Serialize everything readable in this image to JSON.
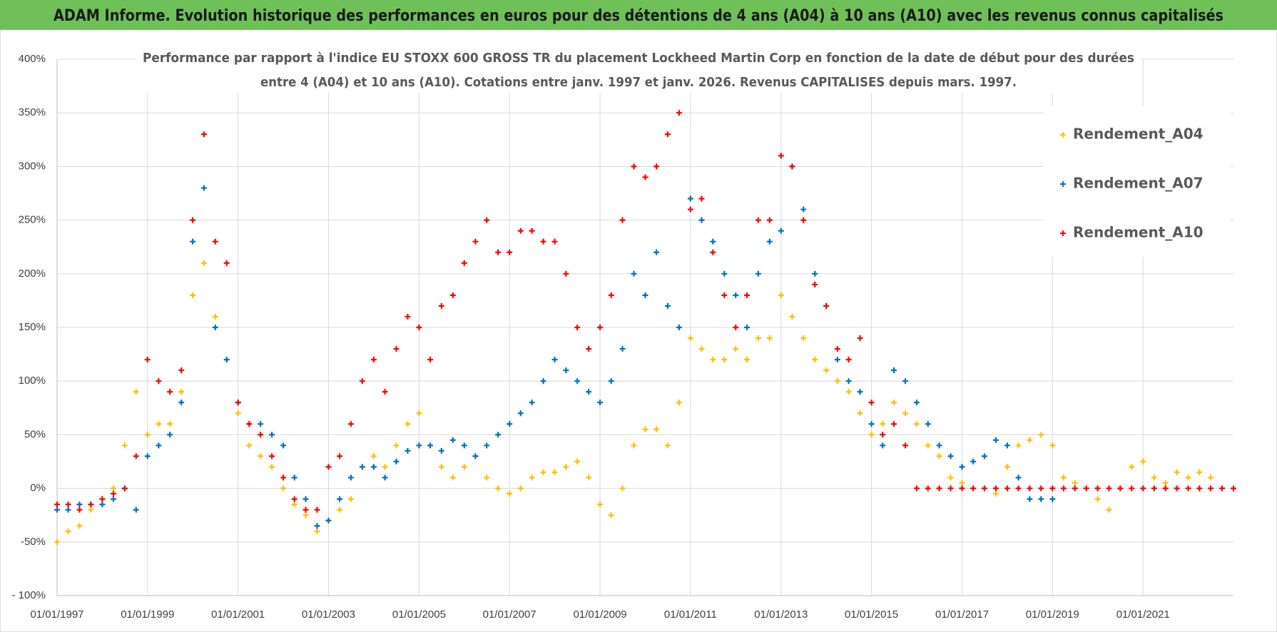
{
  "chart_data": {
    "type": "scatter",
    "title": "ADAM Informe. Evolution historique des performances en euros pour des détentions de 4 ans (A04) à 10 ans (A10) avec les revenus connus capitalisés",
    "subtitle": [
      "Performance par rapport à l'indice EU STOXX 600 GROSS TR  du placement Lockheed Martin Corp en fonction de la date de début pour des durées",
      "entre 4 (A04) et 10 ans (A10). Cotations entre janv. 1997 et janv. 2026. Revenus CAPITALISES depuis mars. 1997."
    ],
    "x": [
      "01/01/1997",
      "01/04/1997",
      "01/07/1997",
      "01/10/1997",
      "01/01/1998",
      "01/04/1998",
      "01/07/1998",
      "01/10/1998",
      "01/01/1999",
      "01/04/1999",
      "01/07/1999",
      "01/10/1999",
      "01/01/2000",
      "01/04/2000",
      "01/07/2000",
      "01/10/2000",
      "01/01/2001",
      "01/04/2001",
      "01/07/2001",
      "01/10/2001",
      "01/01/2002",
      "01/04/2002",
      "01/07/2002",
      "01/10/2002",
      "01/01/2003",
      "01/04/2003",
      "01/07/2003",
      "01/10/2003",
      "01/01/2004",
      "01/04/2004",
      "01/07/2004",
      "01/10/2004",
      "01/01/2005",
      "01/04/2005",
      "01/07/2005",
      "01/10/2005",
      "01/01/2006",
      "01/04/2006",
      "01/07/2006",
      "01/10/2006",
      "01/01/2007",
      "01/04/2007",
      "01/07/2007",
      "01/10/2007",
      "01/01/2008",
      "01/04/2008",
      "01/07/2008",
      "01/10/2008",
      "01/01/2009",
      "01/04/2009",
      "01/07/2009",
      "01/10/2009",
      "01/01/2010",
      "01/04/2010",
      "01/07/2010",
      "01/10/2010",
      "01/01/2011",
      "01/04/2011",
      "01/07/2011",
      "01/10/2011",
      "01/01/2012",
      "01/04/2012",
      "01/07/2012",
      "01/10/2012",
      "01/01/2013",
      "01/04/2013",
      "01/07/2013",
      "01/10/2013",
      "01/01/2014",
      "01/04/2014",
      "01/07/2014",
      "01/10/2014",
      "01/01/2015",
      "01/04/2015",
      "01/07/2015",
      "01/10/2015",
      "01/01/2016",
      "01/04/2016",
      "01/07/2016",
      "01/10/2016",
      "01/01/2017",
      "01/04/2017",
      "01/07/2017",
      "01/10/2017",
      "01/01/2018",
      "01/04/2018",
      "01/07/2018",
      "01/10/2018",
      "01/01/2019",
      "01/04/2019",
      "01/07/2019",
      "01/10/2019",
      "01/01/2020",
      "01/04/2020",
      "01/07/2020",
      "01/10/2020",
      "01/01/2021",
      "01/04/2021",
      "01/07/2021",
      "01/10/2021",
      "01/01/2022",
      "01/04/2022",
      "01/07/2022",
      "01/10/2022",
      "01/01/2023"
    ],
    "series": [
      {
        "name": "Rendement_A04",
        "color": "#ffc000",
        "values": [
          -50,
          -40,
          -35,
          -20,
          -10,
          0,
          40,
          90,
          50,
          60,
          60,
          90,
          180,
          210,
          160,
          120,
          70,
          40,
          30,
          20,
          0,
          -15,
          -25,
          -40,
          -30,
          -20,
          -10,
          20,
          30,
          20,
          40,
          60,
          70,
          40,
          20,
          10,
          20,
          30,
          10,
          0,
          -5,
          0,
          10,
          15,
          15,
          20,
          25,
          10,
          -15,
          -25,
          0,
          40,
          55,
          55,
          40,
          80,
          140,
          130,
          120,
          120,
          130,
          120,
          140,
          140,
          180,
          160,
          140,
          120,
          110,
          100,
          90,
          70,
          50,
          60,
          80,
          70,
          60,
          40,
          30,
          10,
          5,
          0,
          0,
          -5,
          20,
          40,
          45,
          50,
          40,
          10,
          5,
          0,
          -10,
          -20,
          0,
          20,
          25,
          10,
          5,
          15,
          10,
          15,
          10,
          null,
          null
        ]
      },
      {
        "name": "Rendement_A07",
        "color": "#0070c0",
        "values": [
          -20,
          -20,
          -15,
          -15,
          -15,
          -10,
          0,
          -20,
          30,
          40,
          50,
          80,
          230,
          280,
          150,
          120,
          80,
          60,
          60,
          50,
          40,
          10,
          -10,
          -35,
          -30,
          -10,
          10,
          20,
          20,
          10,
          25,
          35,
          40,
          40,
          35,
          45,
          40,
          30,
          40,
          50,
          60,
          70,
          80,
          100,
          120,
          110,
          100,
          90,
          80,
          100,
          130,
          200,
          180,
          220,
          170,
          150,
          270,
          250,
          230,
          200,
          180,
          150,
          200,
          230,
          240,
          300,
          260,
          200,
          170,
          120,
          100,
          90,
          60,
          40,
          110,
          100,
          80,
          60,
          40,
          30,
          20,
          25,
          30,
          45,
          40,
          10,
          -10,
          -10,
          -10,
          null,
          null,
          null,
          null,
          null,
          null,
          null,
          null,
          null,
          null,
          null,
          null,
          null,
          null,
          null,
          null
        ]
      },
      {
        "name": "Rendement_A10",
        "color": "#ff0000",
        "values": [
          -15,
          -15,
          -20,
          -15,
          -10,
          -5,
          0,
          30,
          120,
          100,
          90,
          110,
          250,
          330,
          230,
          210,
          80,
          60,
          50,
          30,
          10,
          -10,
          -20,
          -20,
          20,
          30,
          60,
          100,
          120,
          90,
          130,
          160,
          150,
          120,
          170,
          180,
          210,
          230,
          250,
          220,
          220,
          240,
          240,
          230,
          230,
          200,
          150,
          130,
          150,
          180,
          250,
          300,
          290,
          300,
          330,
          350,
          260,
          270,
          220,
          180,
          150,
          180,
          250,
          250,
          310,
          300,
          250,
          190,
          170,
          130,
          120,
          140,
          80,
          50,
          60,
          40,
          0,
          0,
          0,
          0,
          0,
          0,
          0,
          0,
          0,
          0,
          0,
          0,
          0,
          0,
          0,
          0,
          0,
          0,
          0,
          0,
          0,
          0,
          0,
          0,
          0,
          0,
          0,
          0,
          0
        ]
      }
    ],
    "xlim": [
      "01/01/1997",
      "01/01/2023"
    ],
    "xticks": [
      "01/01/1997",
      "01/01/1999",
      "01/01/2001",
      "01/01/2003",
      "01/01/2005",
      "01/01/2007",
      "01/01/2009",
      "01/01/2011",
      "01/01/2013",
      "01/01/2015",
      "01/01/2017",
      "01/01/2019",
      "01/01/2021"
    ],
    "ylim": [
      -100,
      400
    ],
    "yticks": [
      {
        "value": -100,
        "label": "- 100%"
      },
      {
        "value": -50,
        "label": "-50%"
      },
      {
        "value": 0,
        "label": "0%"
      },
      {
        "value": 50,
        "label": "50%"
      },
      {
        "value": 100,
        "label": "100%"
      },
      {
        "value": 150,
        "label": "150%"
      },
      {
        "value": 200,
        "label": "200%"
      },
      {
        "value": 250,
        "label": "250%"
      },
      {
        "value": 300,
        "label": "300%"
      },
      {
        "value": 350,
        "label": "350%"
      },
      {
        "value": 400,
        "label": "400%"
      }
    ],
    "grid": true,
    "legend": "upper right"
  }
}
